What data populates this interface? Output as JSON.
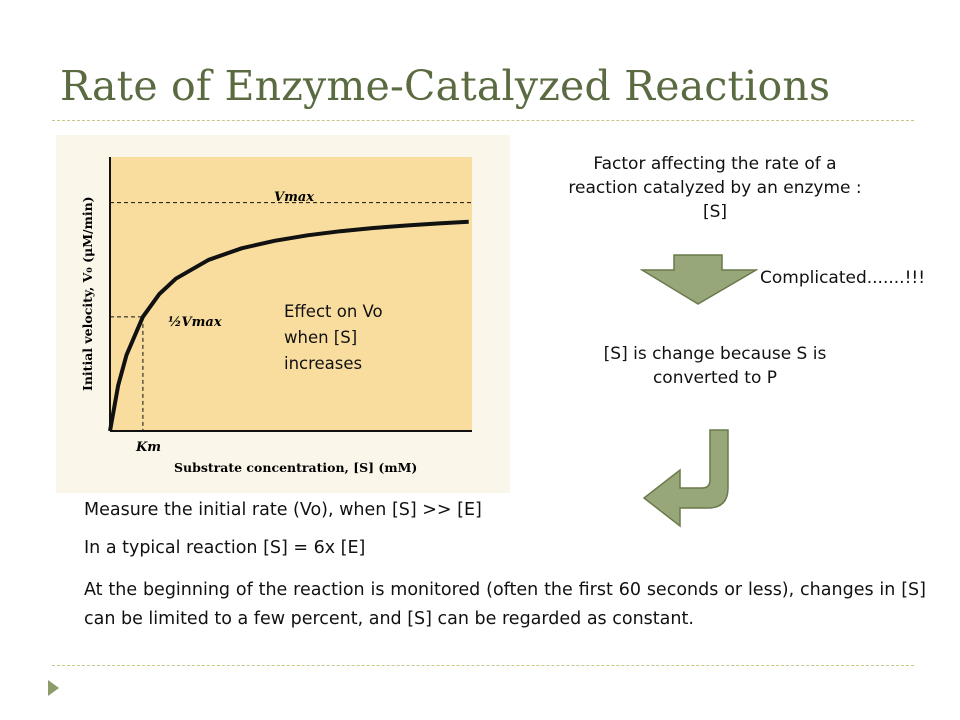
{
  "slide": {
    "title": "Rate of Enzyme-Catalyzed Reactions"
  },
  "chart": {
    "y_axis_label": "Initial velocity, V₀ (μM/min)",
    "x_axis_label": "Substrate concentration, [S] (mM)",
    "vmax_label": "Vmax",
    "half_vmax_label": "½Vmax",
    "km_label": "Km",
    "annotation_lines": [
      "Effect on Vo",
      "when [S]",
      "increases"
    ]
  },
  "chart_data": {
    "type": "line",
    "title": "",
    "xlabel": "Substrate concentration, [S] (mM)",
    "ylabel": "Initial velocity, V₀ (μM/min)",
    "series": [
      {
        "x": [
          0,
          0.25,
          0.5,
          1,
          1.5,
          2,
          3,
          4,
          5,
          6,
          7,
          8,
          9,
          10,
          10.9
        ],
        "y": [
          0,
          0.2,
          0.333,
          0.5,
          0.6,
          0.667,
          0.75,
          0.8,
          0.833,
          0.857,
          0.875,
          0.889,
          0.9,
          0.909,
          0.916
        ]
      }
    ],
    "reference_lines": [
      {
        "label": "Vmax",
        "y": 1.0
      },
      {
        "label": "½Vmax",
        "y": 0.5,
        "x": 1.0
      },
      {
        "label": "Km",
        "x": 1.0
      }
    ],
    "xlim": [
      0,
      11
    ],
    "ylim": [
      0,
      1.2
    ],
    "grid": false,
    "colors": {
      "plot_bg": "#f8dd9f",
      "curve": "#111111",
      "dashed": "#111111"
    }
  },
  "right_panel": {
    "factor_lines": [
      "Factor affecting the rate of a",
      "reaction catalyzed by an enzyme :",
      "[S]"
    ],
    "complicated": "Complicated.......!!!",
    "change_lines": [
      "[S] is change because S is",
      "converted to P"
    ]
  },
  "body": {
    "line1": "Measure the initial rate (Vo), when [S] >> [E]",
    "line2": "In a typical reaction [S] = 6x [E]",
    "paragraph": "At the beginning of the reaction is monitored (often the first 60 seconds or less), changes in [S] can be limited to a few percent, and [S] can be regarded as constant."
  },
  "colors": {
    "title": "#5b6b41",
    "arrow_fill": "#98a77a",
    "arrow_stroke": "#6a7a4b",
    "chart_bg": "#f8dd9f"
  }
}
